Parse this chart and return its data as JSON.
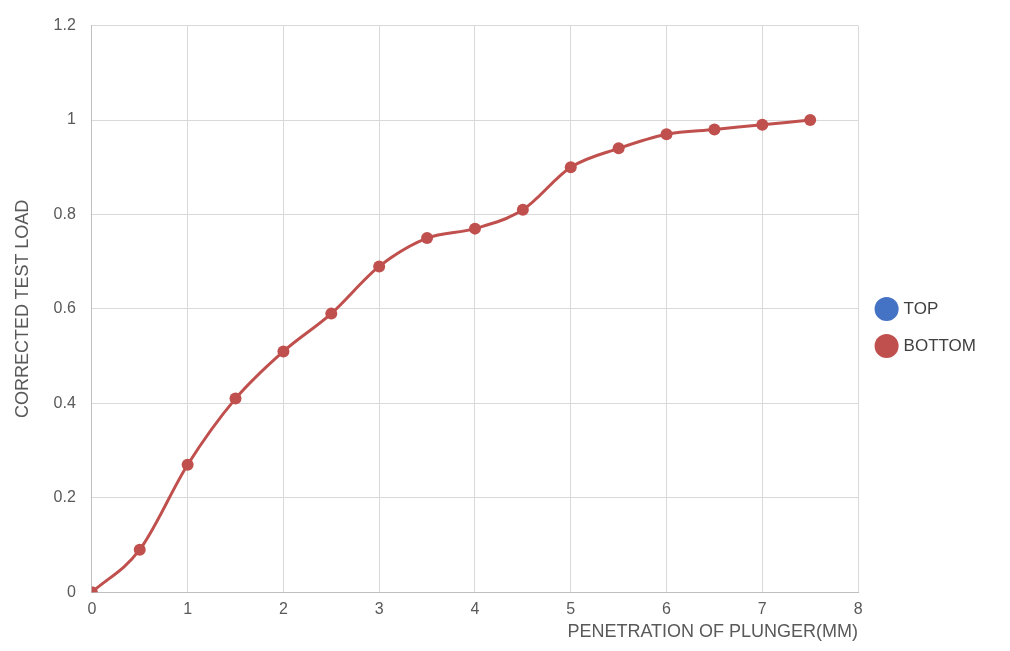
{
  "chart_data": {
    "type": "line",
    "xlabel": "PENETRATION OF PLUNGER(MM)",
    "ylabel": "CORRECTED TEST LOAD",
    "x": [
      0,
      0.5,
      1,
      1.5,
      2,
      2.5,
      3,
      3.5,
      4,
      4.5,
      5,
      5.5,
      6,
      6.5,
      7,
      7.5
    ],
    "series": [
      {
        "name": "TOP",
        "color": "#4472c4",
        "values": [
          null,
          null,
          null,
          null,
          null,
          null,
          null,
          null,
          null,
          null,
          null,
          null,
          null,
          null,
          null,
          null
        ]
      },
      {
        "name": "BOTTOM",
        "color": "#c0504d",
        "values": [
          0,
          0.09,
          0.27,
          0.41,
          0.51,
          0.59,
          0.69,
          0.75,
          0.77,
          0.81,
          0.9,
          0.94,
          0.97,
          0.98,
          0.99,
          1.0
        ]
      }
    ],
    "xlim": [
      0,
      8
    ],
    "xticks": [
      0,
      1,
      2,
      3,
      4,
      5,
      6,
      7,
      8
    ],
    "ylim": [
      0,
      1.2
    ],
    "yticks": [
      0,
      0.2,
      0.4,
      0.6,
      0.8,
      1,
      1.2
    ],
    "grid": true,
    "legend": "right",
    "marker": "circle",
    "line_style": "solid"
  }
}
